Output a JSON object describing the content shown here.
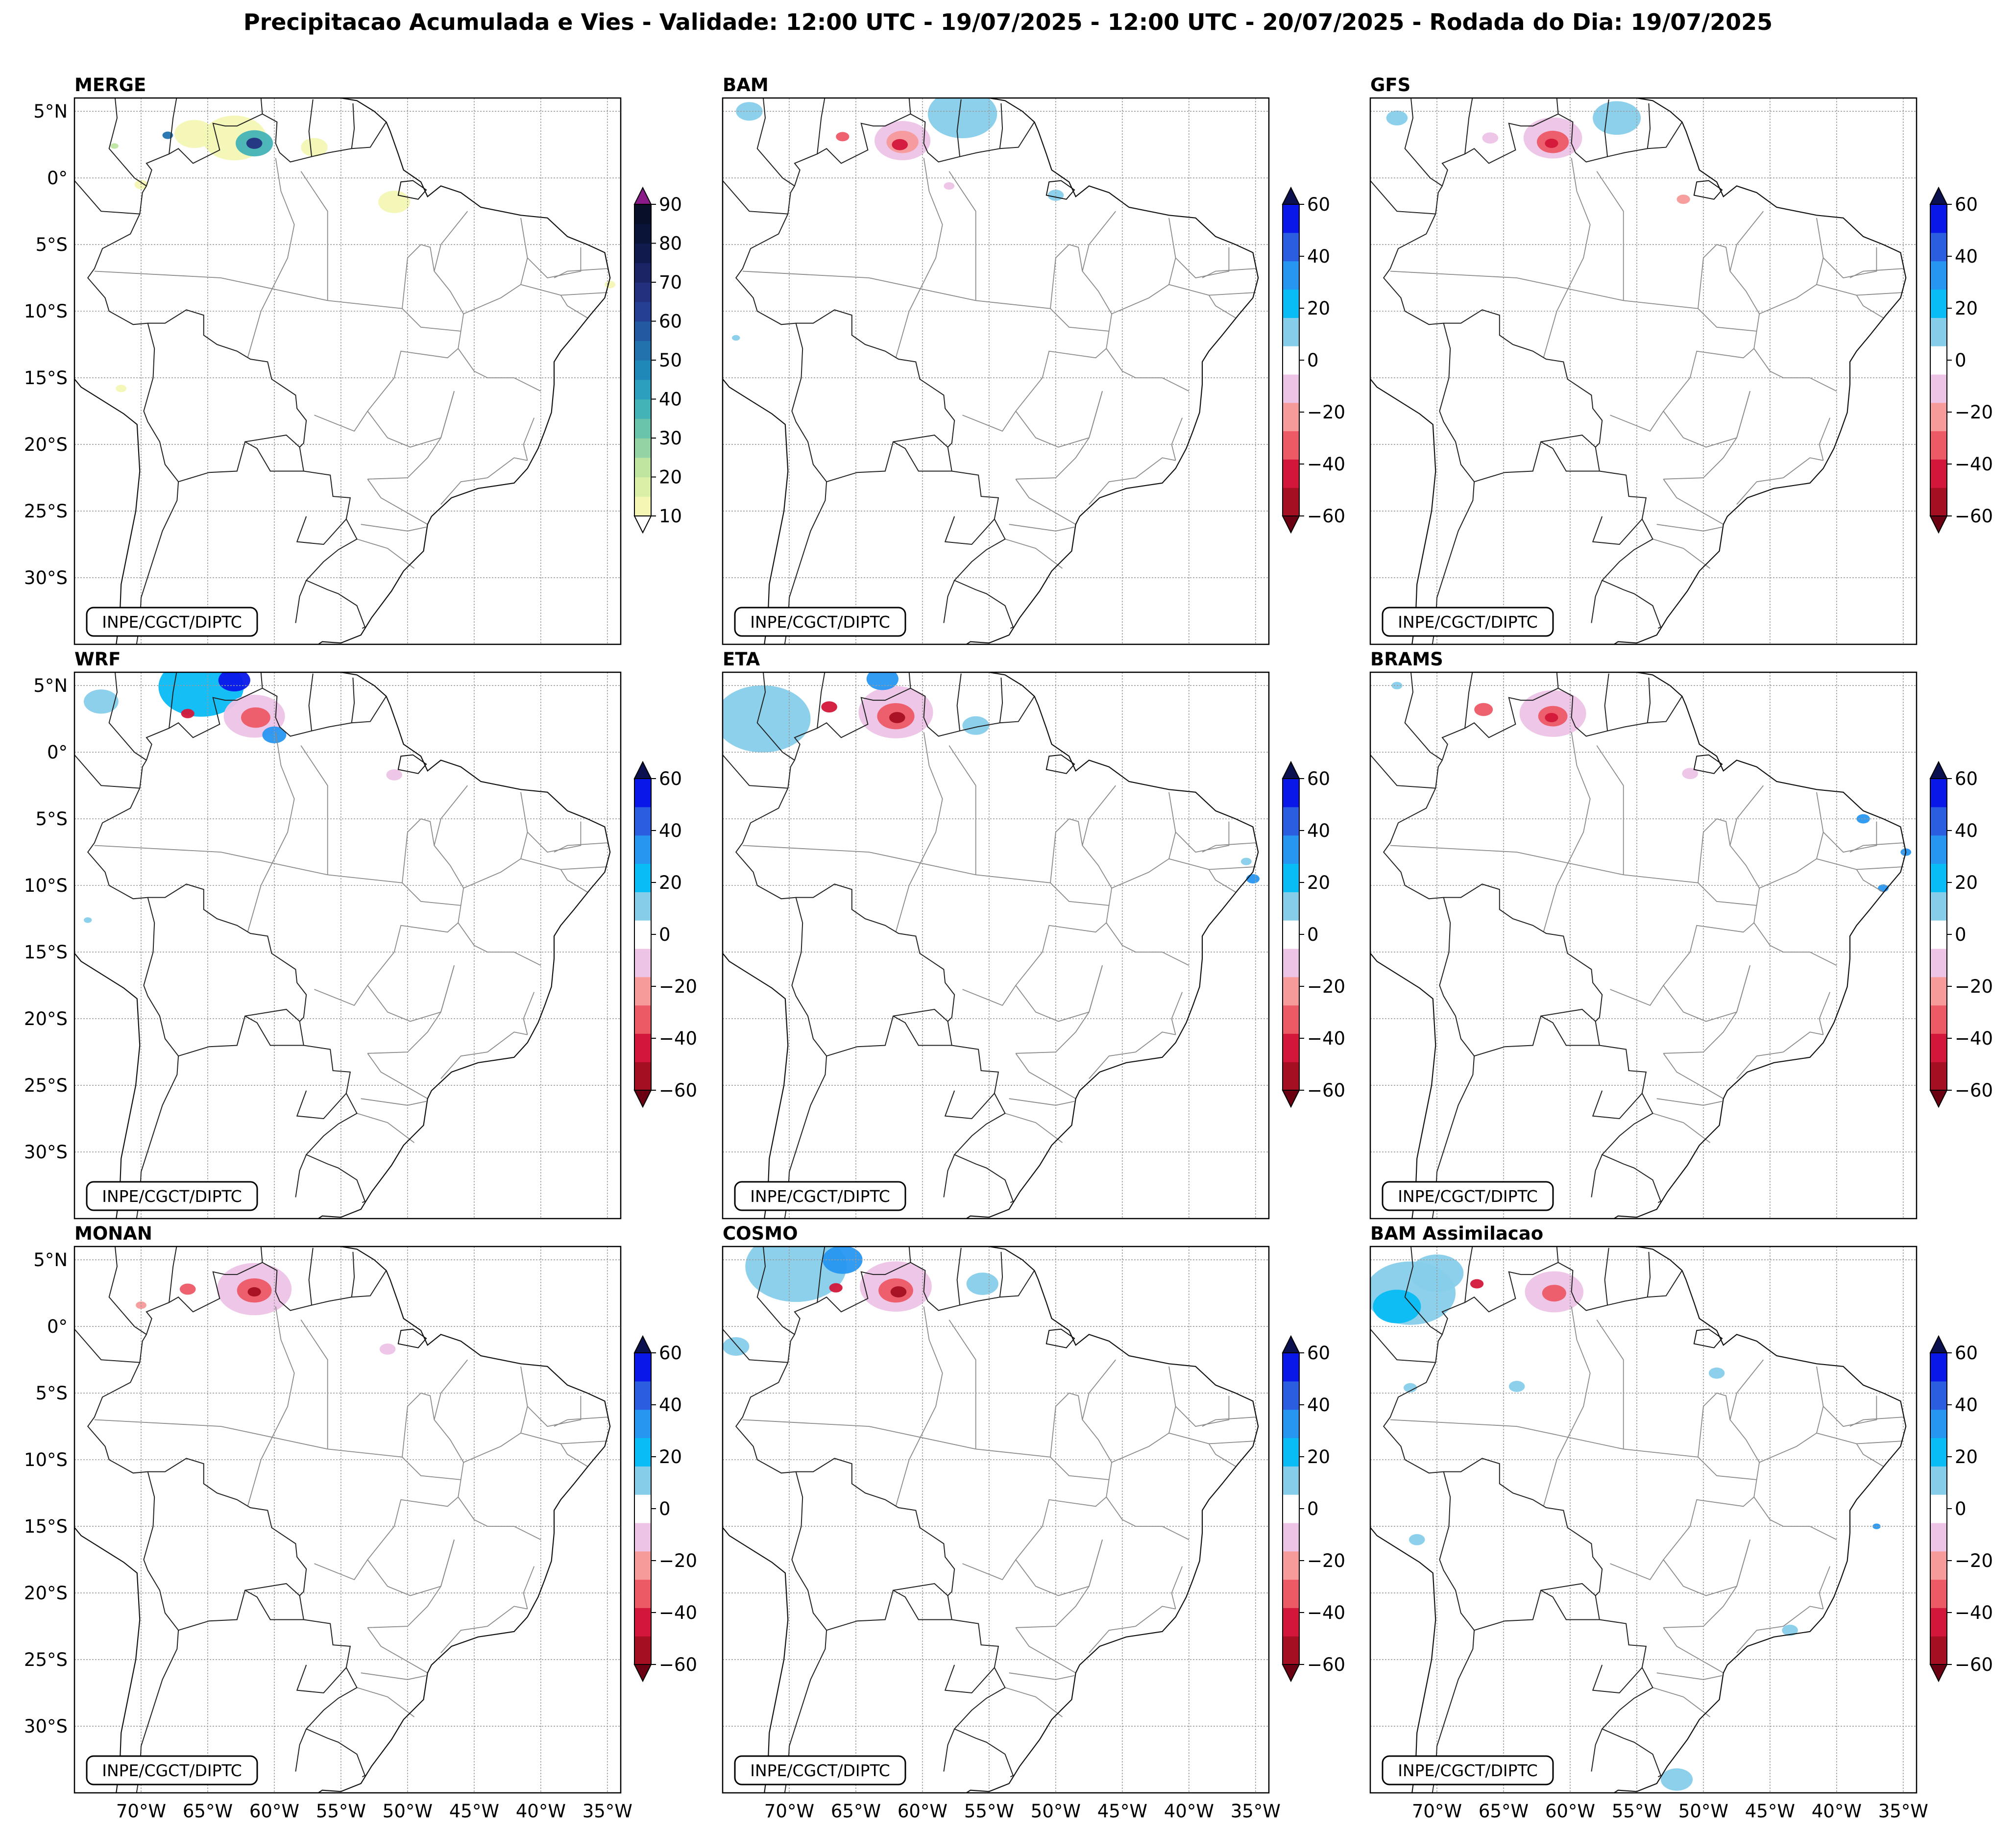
{
  "title": "Precipitacao Acumulada e Vies - Validade: 12:00 UTC - 19/07/2025 - 12:00 UTC - 20/07/2025 - Rodada do Dia: 19/07/2025",
  "credit": "INPE/CGCT/DIPTC",
  "lat_ticks": [
    "5°N",
    "0°",
    "5°S",
    "10°S",
    "15°S",
    "20°S",
    "25°S",
    "30°S"
  ],
  "lon_ticks": [
    "70°W",
    "65°W",
    "60°W",
    "55°W",
    "50°W",
    "45°W",
    "40°W",
    "35°W"
  ],
  "panels": [
    {
      "name": "MERGE",
      "kind": "precip"
    },
    {
      "name": "BAM",
      "kind": "bias"
    },
    {
      "name": "GFS",
      "kind": "bias"
    },
    {
      "name": "WRF",
      "kind": "bias"
    },
    {
      "name": "ETA",
      "kind": "bias"
    },
    {
      "name": "BRAMS",
      "kind": "bias"
    },
    {
      "name": "MONAN",
      "kind": "bias"
    },
    {
      "name": "COSMO",
      "kind": "bias"
    },
    {
      "name": "BAM Assimilacao",
      "kind": "bias"
    }
  ],
  "colorbars": {
    "precip": {
      "ticks": [
        "10",
        "20",
        "30",
        "40",
        "50",
        "60",
        "70",
        "80",
        "90"
      ],
      "bounds": [
        10,
        15,
        20,
        25,
        30,
        35,
        40,
        45,
        50,
        55,
        60,
        65,
        70,
        75,
        80,
        85,
        90
      ],
      "colors": [
        "#f4f7b4",
        "#dcefa6",
        "#bfe5a0",
        "#93d3a4",
        "#6ac4ab",
        "#43b3b7",
        "#2b9fbd",
        "#1f88b8",
        "#2272ae",
        "#2359a1",
        "#253f93",
        "#23307e",
        "#1b2565",
        "#101a4c",
        "#0a1338",
        "#081028"
      ],
      "under_color": "#ffffff",
      "over_color": "#8b1a89"
    },
    "bias": {
      "ticks": [
        "60",
        "40",
        "20",
        "0",
        "−20",
        "−40",
        "−60"
      ],
      "bounds": [
        -60,
        -50,
        -40,
        -30,
        -20,
        -10,
        10,
        20,
        30,
        40,
        50,
        60
      ],
      "colors": [
        "#a50f22",
        "#d3173a",
        "#ec5a66",
        "#f79a9a",
        "#edc3e6",
        "#ffffff",
        "#86cdea",
        "#08bcf5",
        "#2796f1",
        "#2b5de1",
        "#0a17e9"
      ],
      "under_color": "#6b0012",
      "over_color": "#0b1050"
    }
  },
  "map": {
    "extent_lon": [
      -75,
      -34
    ],
    "extent_lat": [
      -35,
      6
    ],
    "grid_lon": [
      -70,
      -65,
      -60,
      -55,
      -50,
      -45,
      -40,
      -35
    ],
    "grid_lat": [
      5,
      0,
      -5,
      -10,
      -15,
      -20,
      -25,
      -30
    ]
  }
}
